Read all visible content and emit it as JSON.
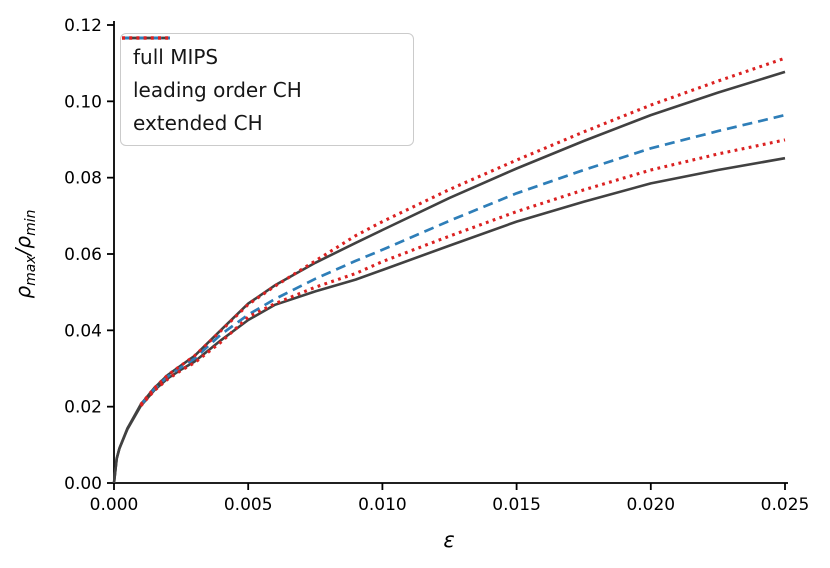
{
  "chart_data": {
    "type": "line",
    "title": "",
    "xlabel": "ε",
    "ylabel": "ρmax/ρmin",
    "ylabel_parts": {
      "rho1": "ρ",
      "sub1": "max",
      "slash": "/",
      "rho2": "ρ",
      "sub2": "min"
    },
    "xlim": [
      0,
      0.025
    ],
    "ylim": [
      0,
      0.12
    ],
    "xticks": [
      0,
      0.005,
      0.01,
      0.015,
      0.02,
      0.025
    ],
    "xticklabels": [
      "0.000",
      "0.005",
      "0.010",
      "0.015",
      "0.020",
      "0.025"
    ],
    "yticks": [
      0,
      0.02,
      0.04,
      0.06,
      0.08,
      0.1,
      0.12
    ],
    "yticklabels": [
      "0.00",
      "0.02",
      "0.04",
      "0.06",
      "0.08",
      "0.10",
      "0.12"
    ],
    "grid": false,
    "colors": {
      "full_mips": "#414141",
      "leading_order_ch": "#2e7eb8",
      "extended_ch": "#db2121",
      "axis": "#000000"
    },
    "legend": {
      "position": "upper left",
      "items": [
        {
          "label": "full MIPS",
          "color": "#414141",
          "dash_svg": "none",
          "width": "2.8"
        },
        {
          "label": "leading order CH",
          "color": "#2e7eb8",
          "dash_svg": "9.5,5.5",
          "width": "3"
        },
        {
          "label": "extended CH",
          "color": "#db2121",
          "dash_svg": "3,4.2",
          "width": "3.4"
        }
      ]
    },
    "series": [
      {
        "id": "full-mips-upper",
        "name": "full MIPS",
        "style": "solid",
        "color": "#414141",
        "width": 2.6,
        "dash": "none",
        "x": [
          0,
          0.0001,
          0.0002,
          0.0005,
          0.001,
          0.0015,
          0.002,
          0.0025,
          0.003,
          0.004,
          0.005,
          0.006,
          0.0075,
          0.009,
          0.01,
          0.0125,
          0.015,
          0.0175,
          0.02,
          0.0225,
          0.025
        ],
        "values": [
          0,
          0.0064,
          0.0091,
          0.0143,
          0.0206,
          0.0249,
          0.0283,
          0.0308,
          0.0333,
          0.0402,
          0.047,
          0.0518,
          0.0577,
          0.0629,
          0.0663,
          0.0747,
          0.0824,
          0.0896,
          0.0964,
          0.1023,
          0.1077
        ]
      },
      {
        "id": "full-mips-lower",
        "name": "full MIPS",
        "style": "solid",
        "color": "#414141",
        "width": 2.6,
        "dash": "none",
        "x": [
          0,
          0.0001,
          0.0002,
          0.0005,
          0.001,
          0.0015,
          0.002,
          0.0025,
          0.003,
          0.004,
          0.005,
          0.006,
          0.0075,
          0.009,
          0.01,
          0.0125,
          0.015,
          0.0175,
          0.02,
          0.0225,
          0.025
        ],
        "values": [
          0,
          0.0064,
          0.009,
          0.0141,
          0.0202,
          0.0243,
          0.0274,
          0.0297,
          0.0318,
          0.0375,
          0.0427,
          0.0467,
          0.0502,
          0.0533,
          0.0558,
          0.0622,
          0.0685,
          0.0737,
          0.0785,
          0.082,
          0.0851
        ]
      },
      {
        "id": "leading-order-ch",
        "name": "leading order CH",
        "style": "dashed",
        "color": "#2e7eb8",
        "width": 2.7,
        "dash": "10,6",
        "x": [
          0.001,
          0.0015,
          0.002,
          0.0025,
          0.003,
          0.004,
          0.005,
          0.006,
          0.0075,
          0.009,
          0.01,
          0.0125,
          0.015,
          0.0175,
          0.02,
          0.0225,
          0.025
        ],
        "values": [
          0.0204,
          0.0246,
          0.0279,
          0.0303,
          0.0326,
          0.039,
          0.0441,
          0.0482,
          0.0535,
          0.0582,
          0.0611,
          0.0687,
          0.0759,
          0.082,
          0.0877,
          0.0922,
          0.0964
        ]
      },
      {
        "id": "extended-ch-upper",
        "name": "extended CH",
        "style": "dotted",
        "color": "#db2121",
        "width": 3.1,
        "dash": "2.8,4.4",
        "x": [
          0.001,
          0.0015,
          0.002,
          0.0025,
          0.003,
          0.004,
          0.005,
          0.006,
          0.0075,
          0.009,
          0.01,
          0.0125,
          0.015,
          0.0175,
          0.02,
          0.0225,
          0.025
        ],
        "values": [
          0.0206,
          0.0249,
          0.0283,
          0.0308,
          0.0333,
          0.04,
          0.0468,
          0.0516,
          0.0582,
          0.0648,
          0.0685,
          0.0769,
          0.0846,
          0.092,
          0.099,
          0.1053,
          0.1113
        ]
      },
      {
        "id": "extended-ch-lower",
        "name": "extended CH",
        "style": "dotted",
        "color": "#db2121",
        "width": 3.1,
        "dash": "2.8,4.4",
        "x": [
          0.001,
          0.0015,
          0.002,
          0.0025,
          0.003,
          0.004,
          0.005,
          0.006,
          0.0075,
          0.009,
          0.01,
          0.0125,
          0.015,
          0.0175,
          0.02,
          0.0225,
          0.025
        ],
        "values": [
          0.0202,
          0.0242,
          0.0272,
          0.0295,
          0.0315,
          0.037,
          0.0435,
          0.047,
          0.0513,
          0.0549,
          0.058,
          0.0647,
          0.0711,
          0.0768,
          0.082,
          0.0862,
          0.0899
        ]
      }
    ]
  }
}
